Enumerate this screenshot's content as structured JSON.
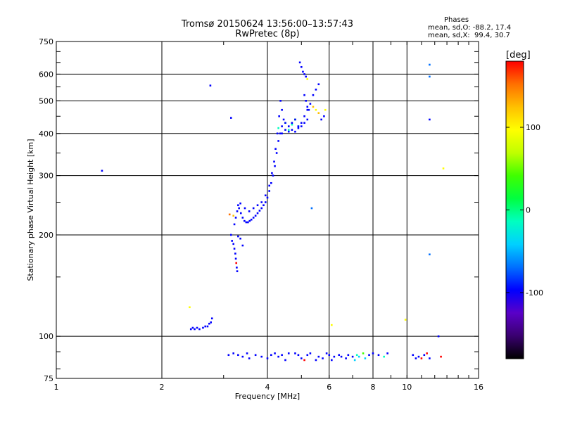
{
  "title": {
    "line1": "Tromsø 20150624 13:56:00–13:57:43",
    "line2": "RwPretec (8p)"
  },
  "stats": {
    "heading": "Phases",
    "o_mode": "mean, sd,O: -88.2, 17.4",
    "x_mode": "mean, sd,X:  99.4, 30.7"
  },
  "colorbar": {
    "unit_label": "[deg]",
    "range": [
      -180,
      180
    ],
    "tick_labels": [
      "100",
      "0",
      "-100"
    ],
    "tick_values": [
      100,
      0,
      -100
    ],
    "colors": [
      "#000000",
      "#3a0070",
      "#5a00c8",
      "#0000ff",
      "#0070ff",
      "#00d0ff",
      "#00ffc0",
      "#00ff40",
      "#40ff00",
      "#c0ff00",
      "#ffff00",
      "#ffc000",
      "#ff7000",
      "#ff0000"
    ]
  },
  "chart_data": {
    "type": "scatter",
    "title": "Tromsø 20150624 13:56:00–13:57:43",
    "subtitle": "RwPretec (8p)",
    "xlabel": "Frequency [MHz]",
    "ylabel": "Stationary phase Virtual Height [km]",
    "x_scale": "log",
    "y_scale": "log",
    "xlim": [
      1,
      16
    ],
    "ylim": [
      75,
      750
    ],
    "x_tick_labels": [
      "1",
      "2",
      "4",
      "6",
      "8",
      "10",
      "16"
    ],
    "x_ticks": [
      1,
      2,
      4,
      6,
      8,
      10,
      16
    ],
    "y_tick_labels": [
      "75",
      "100",
      "200",
      "300",
      "400",
      "500",
      "600",
      "750"
    ],
    "y_ticks": [
      75,
      100,
      200,
      300,
      400,
      500,
      600,
      750
    ],
    "grid": true,
    "color_encoding": "phase [deg]",
    "series": [
      {
        "points": [
          [
            1.35,
            310,
            -100
          ],
          [
            2.75,
            555,
            -100
          ],
          [
            3.15,
            445,
            -100
          ],
          [
            2.42,
            105,
            -95
          ],
          [
            2.45,
            106,
            -90
          ],
          [
            2.48,
            105,
            -100
          ],
          [
            2.52,
            106,
            -95
          ],
          [
            2.56,
            105,
            -92
          ],
          [
            2.62,
            106,
            -100
          ],
          [
            2.66,
            107,
            -95
          ],
          [
            2.7,
            107,
            -100
          ],
          [
            2.73,
            109,
            -90
          ],
          [
            2.76,
            110,
            -95
          ],
          [
            2.4,
            122,
            110
          ],
          [
            2.78,
            113,
            -100
          ],
          [
            3.15,
            200,
            -100
          ],
          [
            3.17,
            192,
            -95
          ],
          [
            3.2,
            188,
            -90
          ],
          [
            3.22,
            182,
            -100
          ],
          [
            3.24,
            176,
            -95
          ],
          [
            3.25,
            170,
            -100
          ],
          [
            3.26,
            165,
            170
          ],
          [
            3.27,
            160,
            -100
          ],
          [
            3.28,
            156,
            -95
          ],
          [
            3.3,
            198,
            -100
          ],
          [
            3.35,
            195,
            -95
          ],
          [
            3.4,
            186,
            -100
          ],
          [
            3.22,
            215,
            -100
          ],
          [
            3.25,
            225,
            -95
          ],
          [
            3.28,
            235,
            -100
          ],
          [
            3.32,
            240,
            -90
          ],
          [
            3.36,
            232,
            -100
          ],
          [
            3.4,
            225,
            -95
          ],
          [
            3.44,
            220,
            -100
          ],
          [
            3.48,
            218,
            -90
          ],
          [
            3.52,
            218,
            -100
          ],
          [
            3.56,
            220,
            -95
          ],
          [
            3.6,
            222,
            -100
          ],
          [
            3.65,
            225,
            -90
          ],
          [
            3.7,
            228,
            -100
          ],
          [
            3.75,
            232,
            -95
          ],
          [
            3.8,
            236,
            -100
          ],
          [
            3.85,
            240,
            -90
          ],
          [
            3.9,
            245,
            -100
          ],
          [
            3.95,
            250,
            -95
          ],
          [
            4.0,
            258,
            -100
          ],
          [
            4.05,
            270,
            -90
          ],
          [
            4.1,
            285,
            -100
          ],
          [
            4.15,
            300,
            -95
          ],
          [
            4.2,
            320,
            -100
          ],
          [
            4.25,
            350,
            -90
          ],
          [
            4.3,
            380,
            -100
          ],
          [
            4.35,
            400,
            -95
          ],
          [
            4.4,
            420,
            -100
          ],
          [
            4.45,
            440,
            -90
          ],
          [
            3.3,
            245,
            -100
          ],
          [
            3.35,
            248,
            -90
          ],
          [
            3.45,
            240,
            -100
          ],
          [
            3.55,
            235,
            -95
          ],
          [
            3.65,
            240,
            -100
          ],
          [
            3.75,
            245,
            -95
          ],
          [
            3.85,
            250,
            -100
          ],
          [
            3.95,
            262,
            -90
          ],
          [
            4.05,
            280,
            -100
          ],
          [
            4.12,
            305,
            -95
          ],
          [
            4.18,
            330,
            -100
          ],
          [
            4.22,
            360,
            -90
          ],
          [
            4.27,
            400,
            -100
          ],
          [
            4.32,
            450,
            -95
          ],
          [
            4.36,
            500,
            -100
          ],
          [
            4.4,
            470,
            -90
          ],
          [
            3.12,
            230,
            150
          ],
          [
            3.2,
            228,
            120
          ],
          [
            4.3,
            415,
            -20
          ],
          [
            4.5,
            430,
            0
          ],
          [
            4.6,
            410,
            -20
          ],
          [
            4.7,
            425,
            -10
          ],
          [
            4.8,
            440,
            10
          ],
          [
            4.9,
            420,
            -30
          ],
          [
            4.5,
            430,
            -100
          ],
          [
            4.6,
            420,
            -95
          ],
          [
            4.7,
            430,
            -100
          ],
          [
            4.8,
            440,
            -90
          ],
          [
            4.9,
            420,
            -100
          ],
          [
            5.0,
            430,
            -95
          ],
          [
            5.1,
            450,
            -100
          ],
          [
            5.2,
            470,
            -90
          ],
          [
            5.3,
            490,
            -100
          ],
          [
            5.4,
            520,
            -95
          ],
          [
            5.5,
            540,
            -100
          ],
          [
            5.6,
            560,
            -90
          ],
          [
            4.4,
            400,
            -100
          ],
          [
            4.5,
            410,
            -95
          ],
          [
            4.6,
            405,
            -100
          ],
          [
            4.7,
            410,
            -90
          ],
          [
            4.8,
            405,
            -100
          ],
          [
            4.9,
            415,
            -95
          ],
          [
            5.0,
            420,
            -100
          ],
          [
            5.1,
            430,
            -90
          ],
          [
            5.2,
            440,
            -100
          ],
          [
            4.95,
            650,
            -100
          ],
          [
            5.0,
            630,
            -95
          ],
          [
            5.05,
            610,
            -100
          ],
          [
            5.1,
            600,
            -90
          ],
          [
            5.15,
            590,
            -100
          ],
          [
            5.2,
            580,
            110
          ],
          [
            5.1,
            520,
            -100
          ],
          [
            5.15,
            500,
            -95
          ],
          [
            5.2,
            480,
            -100
          ],
          [
            5.25,
            470,
            -90
          ],
          [
            5.4,
            480,
            120
          ],
          [
            5.5,
            470,
            110
          ],
          [
            5.6,
            460,
            120
          ],
          [
            5.7,
            440,
            -100
          ],
          [
            5.8,
            450,
            -100
          ],
          [
            5.85,
            470,
            110
          ],
          [
            5.35,
            240,
            -60
          ],
          [
            6.1,
            108,
            110
          ],
          [
            9.9,
            112,
            110
          ],
          [
            11.6,
            640,
            -60
          ],
          [
            11.6,
            590,
            -60
          ],
          [
            11.6,
            440,
            -100
          ],
          [
            11.6,
            175,
            -60
          ],
          [
            12.3,
            100,
            -100
          ],
          [
            12.7,
            315,
            110
          ],
          [
            3.1,
            88,
            -100
          ],
          [
            3.2,
            89,
            -95
          ],
          [
            3.3,
            88,
            -100
          ],
          [
            3.4,
            87,
            -90
          ],
          [
            3.5,
            89,
            -100
          ],
          [
            3.55,
            86,
            -95
          ],
          [
            3.7,
            88,
            -100
          ],
          [
            3.85,
            87,
            -90
          ],
          [
            4.0,
            86,
            -100
          ],
          [
            4.1,
            88,
            -95
          ],
          [
            4.2,
            89,
            -100
          ],
          [
            4.3,
            87,
            -90
          ],
          [
            4.4,
            88,
            -100
          ],
          [
            4.5,
            85,
            -95
          ],
          [
            4.6,
            89,
            -100
          ],
          [
            4.8,
            89,
            -100
          ],
          [
            4.9,
            88,
            -95
          ],
          [
            5.0,
            86,
            -100
          ],
          [
            5.1,
            85,
            170
          ],
          [
            5.2,
            88,
            -100
          ],
          [
            5.3,
            89,
            -95
          ],
          [
            5.5,
            85,
            -100
          ],
          [
            5.6,
            87,
            -90
          ],
          [
            5.75,
            86,
            -100
          ],
          [
            5.9,
            89,
            -95
          ],
          [
            6.0,
            88,
            -100
          ],
          [
            6.1,
            85,
            -95
          ],
          [
            6.2,
            87,
            -100
          ],
          [
            6.4,
            88,
            -90
          ],
          [
            6.5,
            87,
            -100
          ],
          [
            6.7,
            86,
            -95
          ],
          [
            6.8,
            88,
            -100
          ],
          [
            7.0,
            87,
            -90
          ],
          [
            7.1,
            85,
            -30
          ],
          [
            7.2,
            88,
            -20
          ],
          [
            7.3,
            87,
            -30
          ],
          [
            7.5,
            89,
            40
          ],
          [
            7.6,
            86,
            -30
          ],
          [
            7.8,
            88,
            -100
          ],
          [
            8.0,
            89,
            -95
          ],
          [
            8.3,
            88,
            -100
          ],
          [
            8.6,
            87,
            -20
          ],
          [
            8.8,
            89,
            -100
          ],
          [
            10.4,
            88,
            -100
          ],
          [
            10.6,
            86,
            -95
          ],
          [
            10.8,
            87,
            -100
          ],
          [
            11.0,
            86,
            170
          ],
          [
            11.2,
            88,
            -100
          ],
          [
            11.4,
            89,
            170
          ],
          [
            11.6,
            86,
            -95
          ],
          [
            12.5,
            87,
            170
          ]
        ]
      }
    ]
  }
}
